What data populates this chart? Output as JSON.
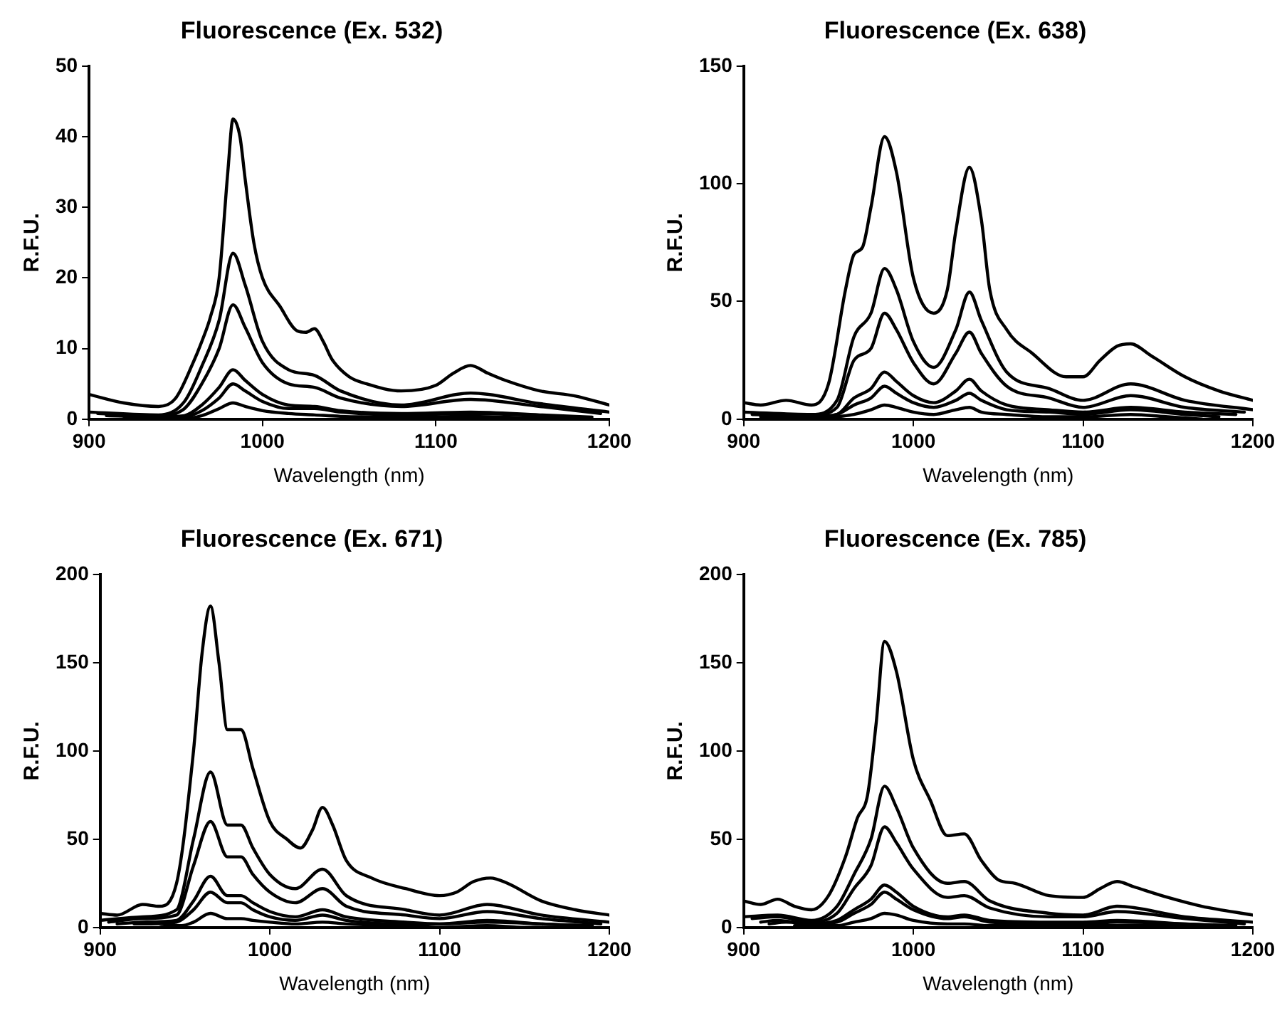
{
  "chart_data": [
    {
      "type": "line",
      "title": "Fluorescence (Ex. 532)",
      "xlabel": "Wavelength (nm)",
      "ylabel": "R.F.U.",
      "xlim": [
        900,
        1200
      ],
      "xticks": [
        900,
        1000,
        1100,
        1200
      ],
      "ylim": [
        0,
        50
      ],
      "yticks": [
        0,
        10,
        20,
        30,
        40,
        50
      ],
      "grid": false,
      "legend": false,
      "marker": "none",
      "line_style": "solid",
      "x": [
        900,
        920,
        940,
        950,
        960,
        965,
        970,
        975,
        980,
        983,
        987,
        990,
        995,
        1000,
        1010,
        1020,
        1025,
        1030,
        1035,
        1040,
        1050,
        1060,
        1080,
        1100,
        1110,
        1120,
        1130,
        1140,
        1160,
        1180,
        1200
      ],
      "series": [
        {
          "color": "#000000",
          "values": [
            3.5,
            2.3,
            1.8,
            3,
            8,
            11,
            14.5,
            20,
            35,
            42.5,
            40,
            34,
            25,
            20,
            16,
            12.5,
            12.3,
            12.8,
            11,
            8.5,
            6,
            5,
            4,
            4.8,
            6.5,
            7.6,
            6.5,
            5.5,
            4,
            3.3,
            2
          ]
        },
        {
          "color": "#000000",
          "x": [
            900,
            940,
            955,
            965,
            975,
            983,
            990,
            1000,
            1015,
            1030,
            1045,
            1080,
            1120,
            1160,
            1200
          ],
          "values": [
            1,
            0.6,
            2.5,
            7.5,
            14,
            23.5,
            19,
            11,
            7,
            6.2,
            4,
            2,
            3.7,
            2.2,
            1
          ]
        },
        {
          "color": "#000000",
          "x": [
            905,
            940,
            955,
            965,
            975,
            983,
            990,
            1000,
            1015,
            1030,
            1045,
            1080,
            1120,
            1160,
            1195
          ],
          "values": [
            0.8,
            0.5,
            1.5,
            5,
            10,
            16.2,
            13,
            8,
            5,
            4.5,
            3,
            1.8,
            2.8,
            1.8,
            0.8
          ]
        },
        {
          "color": "#000000",
          "x": [
            910,
            940,
            955,
            965,
            975,
            983,
            990,
            1000,
            1015,
            1030,
            1045,
            1080,
            1120,
            1160,
            1190
          ],
          "values": [
            0.5,
            0.3,
            0.5,
            2,
            4.5,
            7,
            5.5,
            3.5,
            2,
            1.8,
            1.2,
            0.8,
            1,
            0.6,
            0.3
          ]
        },
        {
          "color": "#000000",
          "x": [
            920,
            940,
            955,
            965,
            975,
            983,
            990,
            1000,
            1015,
            1030,
            1045,
            1080,
            1120,
            1160,
            1180
          ],
          "values": [
            0.4,
            0.2,
            0.3,
            1.2,
            3,
            5,
            4,
            2.5,
            1.5,
            1.5,
            1,
            0.6,
            0.8,
            0.5,
            0.2
          ]
        },
        {
          "color": "#000000",
          "x": [
            935,
            945,
            955,
            965,
            975,
            983,
            990,
            1000,
            1015,
            1030,
            1045,
            1080,
            1120,
            1150,
            1170
          ],
          "values": [
            0.2,
            0.1,
            0.1,
            0.5,
            1.5,
            2.3,
            1.8,
            1.2,
            0.8,
            0.6,
            0.4,
            0.3,
            0.4,
            0.2,
            0.1
          ]
        }
      ]
    },
    {
      "type": "line",
      "title": "Fluorescence (Ex. 638)",
      "xlabel": "Wavelength (nm)",
      "ylabel": "R.F.U.",
      "xlim": [
        900,
        1200
      ],
      "xticks": [
        900,
        1000,
        1100,
        1200
      ],
      "ylim": [
        0,
        150
      ],
      "yticks": [
        0,
        50,
        100,
        150
      ],
      "grid": false,
      "legend": false,
      "marker": "none",
      "line_style": "solid",
      "x": [
        900,
        910,
        925,
        940,
        950,
        960,
        965,
        970,
        975,
        983,
        990,
        1000,
        1012,
        1020,
        1025,
        1033,
        1040,
        1045,
        1055,
        1070,
        1090,
        1100,
        1110,
        1120,
        1128,
        1140,
        1160,
        1180,
        1200
      ],
      "series": [
        {
          "color": "#000000",
          "values": [
            7,
            6,
            8,
            6,
            15,
            55,
            70,
            73,
            90,
            120,
            105,
            60,
            45,
            55,
            80,
            107,
            85,
            55,
            38,
            28,
            18,
            18,
            25,
            31,
            32,
            27,
            18,
            12,
            8
          ]
        },
        {
          "color": "#000000",
          "x": [
            900,
            940,
            955,
            965,
            975,
            983,
            990,
            1000,
            1012,
            1025,
            1033,
            1040,
            1055,
            1080,
            1100,
            1128,
            1160,
            1200
          ],
          "values": [
            3,
            2,
            8,
            35,
            45,
            64,
            55,
            33,
            22,
            38,
            54,
            42,
            20,
            13,
            8,
            15,
            8,
            4
          ]
        },
        {
          "color": "#000000",
          "x": [
            905,
            940,
            955,
            965,
            975,
            983,
            990,
            1000,
            1012,
            1025,
            1033,
            1040,
            1055,
            1080,
            1100,
            1128,
            1160,
            1195
          ],
          "values": [
            2,
            1.5,
            5,
            25,
            30,
            45,
            38,
            24,
            15,
            28,
            37,
            28,
            14,
            9,
            5,
            10,
            5,
            3
          ]
        },
        {
          "color": "#000000",
          "x": [
            910,
            940,
            955,
            965,
            975,
            983,
            990,
            1000,
            1012,
            1025,
            1033,
            1040,
            1055,
            1080,
            1100,
            1128,
            1160,
            1190
          ],
          "values": [
            1,
            1,
            2,
            9,
            13,
            20,
            16,
            10,
            7,
            12,
            17,
            12,
            6,
            4,
            3,
            5,
            3,
            2
          ]
        },
        {
          "color": "#000000",
          "x": [
            920,
            940,
            955,
            965,
            975,
            983,
            990,
            1000,
            1012,
            1025,
            1033,
            1040,
            1055,
            1080,
            1100,
            1128,
            1160,
            1180
          ],
          "values": [
            1,
            1,
            2,
            6,
            9,
            14,
            11,
            7,
            5,
            8,
            11,
            8,
            4,
            3,
            2,
            4,
            2,
            1
          ]
        },
        {
          "color": "#000000",
          "x": [
            935,
            945,
            955,
            965,
            975,
            983,
            990,
            1000,
            1012,
            1025,
            1033,
            1040,
            1055,
            1080,
            1100,
            1128,
            1150,
            1170
          ],
          "values": [
            0,
            0,
            1,
            2,
            4,
            6,
            5,
            3,
            2,
            4,
            5,
            3,
            2,
            1,
            1,
            2,
            1,
            0
          ]
        }
      ]
    },
    {
      "type": "line",
      "title": "Fluorescence (Ex. 671)",
      "xlabel": "Wavelength (nm)",
      "ylabel": "R.F.U.",
      "xlim": [
        900,
        1200
      ],
      "xticks": [
        900,
        1000,
        1100,
        1200
      ],
      "ylim": [
        0,
        200
      ],
      "yticks": [
        0,
        50,
        100,
        150,
        200
      ],
      "grid": false,
      "legend": false,
      "marker": "none",
      "line_style": "solid",
      "x": [
        900,
        910,
        925,
        935,
        945,
        955,
        960,
        965,
        970,
        975,
        983,
        990,
        1000,
        1010,
        1018,
        1025,
        1031,
        1037,
        1045,
        1060,
        1080,
        1100,
        1110,
        1120,
        1130,
        1140,
        1160,
        1180,
        1200
      ],
      "series": [
        {
          "color": "#000000",
          "values": [
            8,
            7,
            13,
            12,
            25,
            100,
            155,
            182,
            150,
            112,
            112,
            90,
            60,
            50,
            45,
            55,
            68,
            58,
            38,
            28,
            22,
            18,
            20,
            26,
            28,
            25,
            15,
            10,
            7
          ]
        },
        {
          "color": "#000000",
          "x": [
            900,
            925,
            945,
            955,
            965,
            975,
            983,
            990,
            1000,
            1015,
            1031,
            1045,
            1080,
            1100,
            1128,
            1160,
            1200
          ],
          "values": [
            4,
            6,
            10,
            50,
            88,
            58,
            58,
            45,
            30,
            22,
            33,
            18,
            10,
            7,
            13,
            7,
            3
          ]
        },
        {
          "color": "#000000",
          "x": [
            905,
            925,
            945,
            955,
            965,
            975,
            983,
            990,
            1000,
            1015,
            1031,
            1045,
            1080,
            1100,
            1128,
            1160,
            1195
          ],
          "values": [
            3,
            5,
            7,
            35,
            60,
            40,
            40,
            30,
            20,
            14,
            22,
            12,
            7,
            5,
            9,
            5,
            2
          ]
        },
        {
          "color": "#000000",
          "x": [
            910,
            925,
            945,
            955,
            965,
            975,
            983,
            990,
            1000,
            1015,
            1031,
            1045,
            1080,
            1100,
            1128,
            1160,
            1190
          ],
          "values": [
            2,
            3,
            4,
            15,
            29,
            18,
            18,
            14,
            9,
            6,
            10,
            6,
            3,
            2,
            4,
            2,
            1
          ]
        },
        {
          "color": "#000000",
          "x": [
            920,
            930,
            945,
            955,
            965,
            975,
            983,
            990,
            1000,
            1015,
            1031,
            1045,
            1080,
            1100,
            1128,
            1160,
            1180
          ],
          "values": [
            2,
            2,
            3,
            10,
            20,
            14,
            14,
            10,
            6,
            4,
            7,
            4,
            2,
            2,
            3,
            2,
            1
          ]
        },
        {
          "color": "#000000",
          "x": [
            935,
            940,
            948,
            955,
            965,
            975,
            983,
            990,
            1000,
            1015,
            1031,
            1045,
            1080,
            1100,
            1128,
            1150,
            1170
          ],
          "values": [
            0,
            1,
            1,
            3,
            8,
            5,
            5,
            4,
            3,
            2,
            3,
            2,
            1,
            0,
            1,
            0,
            0
          ]
        }
      ]
    },
    {
      "type": "line",
      "title": "Fluorescence (Ex. 785)",
      "xlabel": "Wavelength (nm)",
      "ylabel": "R.F.U.",
      "xlim": [
        900,
        1200
      ],
      "xticks": [
        900,
        1000,
        1100,
        1200
      ],
      "ylim": [
        0,
        200
      ],
      "yticks": [
        0,
        50,
        100,
        150,
        200
      ],
      "grid": false,
      "legend": false,
      "marker": "none",
      "line_style": "solid",
      "x": [
        900,
        910,
        920,
        930,
        940,
        950,
        960,
        967,
        973,
        978,
        983,
        990,
        1000,
        1010,
        1020,
        1030,
        1040,
        1050,
        1060,
        1080,
        1100,
        1110,
        1120,
        1130,
        1150,
        1170,
        1200
      ],
      "series": [
        {
          "color": "#000000",
          "values": [
            15,
            13,
            16,
            12,
            10,
            18,
            40,
            62,
            75,
            115,
            162,
            145,
            95,
            72,
            52,
            53,
            38,
            27,
            25,
            18,
            17,
            22,
            26,
            23,
            17,
            12,
            7
          ]
        },
        {
          "color": "#000000",
          "x": [
            900,
            920,
            940,
            955,
            965,
            975,
            983,
            990,
            1000,
            1020,
            1030,
            1045,
            1080,
            1100,
            1120,
            1160,
            1200
          ],
          "values": [
            6,
            7,
            4,
            12,
            30,
            50,
            80,
            68,
            45,
            25,
            26,
            15,
            8,
            7,
            12,
            6,
            3
          ]
        },
        {
          "color": "#000000",
          "x": [
            905,
            920,
            940,
            955,
            965,
            975,
            983,
            990,
            1000,
            1020,
            1030,
            1045,
            1080,
            1100,
            1120,
            1160,
            1195
          ],
          "values": [
            5,
            6,
            3,
            8,
            22,
            35,
            57,
            48,
            33,
            17,
            18,
            11,
            6,
            6,
            9,
            5,
            2
          ]
        },
        {
          "color": "#000000",
          "x": [
            910,
            920,
            940,
            955,
            965,
            975,
            983,
            990,
            1000,
            1020,
            1030,
            1045,
            1080,
            1100,
            1120,
            1160,
            1190
          ],
          "values": [
            3,
            4,
            2,
            4,
            10,
            16,
            24,
            20,
            12,
            6,
            7,
            4,
            3,
            3,
            4,
            2,
            1
          ]
        },
        {
          "color": "#000000",
          "x": [
            915,
            925,
            940,
            955,
            965,
            975,
            983,
            990,
            1000,
            1020,
            1030,
            1045,
            1080,
            1100,
            1120,
            1160,
            1180
          ],
          "values": [
            2,
            3,
            2,
            3,
            8,
            13,
            20,
            16,
            10,
            5,
            6,
            3,
            2,
            2,
            3,
            2,
            1
          ]
        },
        {
          "color": "#000000",
          "x": [
            930,
            935,
            945,
            955,
            965,
            975,
            983,
            990,
            1000,
            1020,
            1030,
            1045,
            1080,
            1100,
            1120,
            1150,
            1170
          ],
          "values": [
            1,
            1,
            1,
            1,
            3,
            5,
            8,
            7,
            4,
            2,
            2,
            1,
            1,
            1,
            1,
            1,
            0
          ]
        }
      ]
    }
  ]
}
